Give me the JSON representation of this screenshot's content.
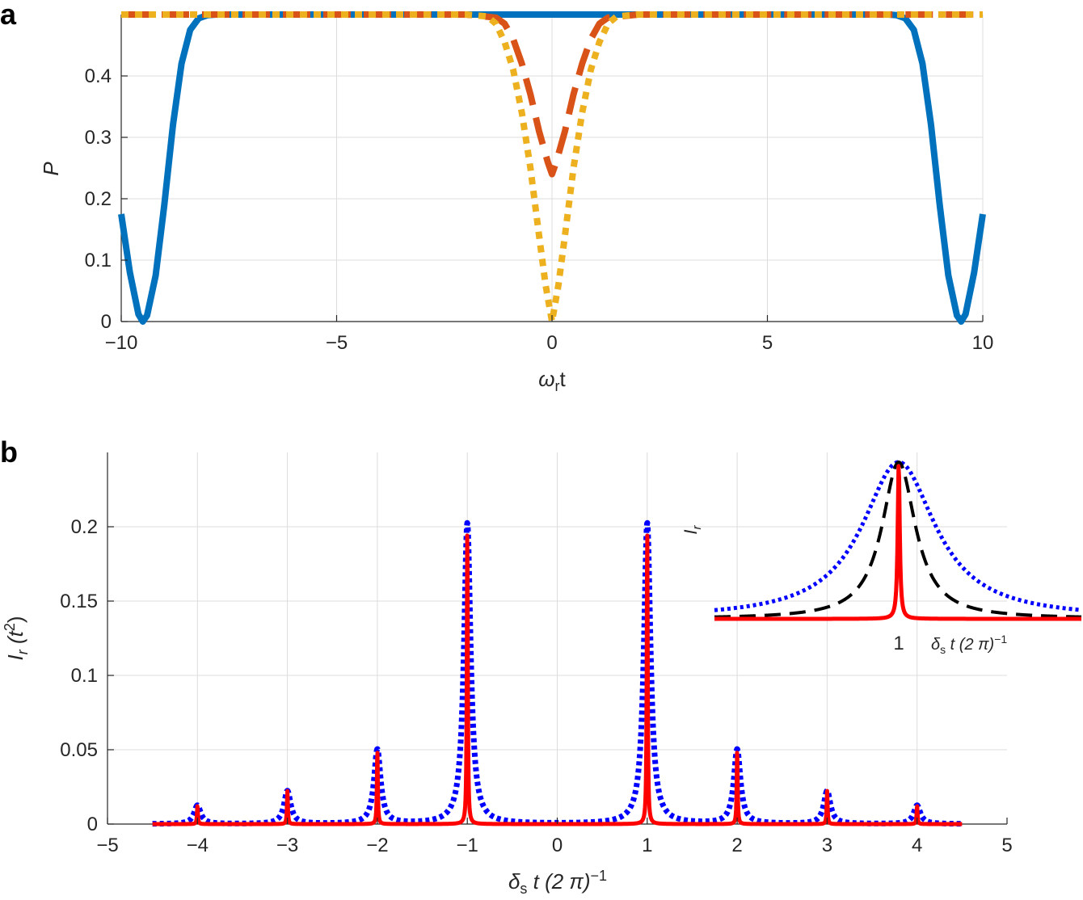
{
  "panels": {
    "a": {
      "letter": "a"
    },
    "b": {
      "letter": "b"
    }
  },
  "chart_data": [
    {
      "type": "line",
      "xlabel_main": "ω",
      "xlabel_sub": "r",
      "xlabel_tail": "t",
      "ylabel": "P",
      "xlim": [
        -10,
        10
      ],
      "ylim": [
        0,
        0.5
      ],
      "grid": true,
      "xticks": [
        -10,
        -5,
        0,
        5,
        10
      ],
      "xtick_labels": [
        "−10",
        "−5",
        "0",
        "5",
        "10"
      ],
      "yticks": [
        0,
        0.1,
        0.2,
        0.3,
        0.4
      ],
      "ytick_labels": [
        "0",
        "0.1",
        "0.2",
        "0.3",
        "0.4"
      ],
      "colors": {
        "blue": "#0072BD",
        "orange": "#D95319",
        "yellow": "#EDB120"
      },
      "series": [
        {
          "style": "solid",
          "color": "#0072BD",
          "x": [
            -10,
            -9.8,
            -9.6,
            -9.5,
            -9.4,
            -9.2,
            -9.0,
            -8.8,
            -8.6,
            -8.4,
            -8.2,
            -8.0,
            -7.8,
            -7.5,
            -5,
            0,
            5,
            7.5,
            7.8,
            8.0,
            8.2,
            8.4,
            8.6,
            8.8,
            9.0,
            9.2,
            9.4,
            9.5,
            9.6,
            9.8,
            10
          ],
          "y": [
            0.175,
            0.08,
            0.012,
            0.0,
            0.01,
            0.075,
            0.19,
            0.32,
            0.42,
            0.475,
            0.494,
            0.499,
            0.5,
            0.5,
            0.5,
            0.5,
            0.5,
            0.5,
            0.5,
            0.499,
            0.494,
            0.475,
            0.42,
            0.32,
            0.19,
            0.075,
            0.01,
            0.0,
            0.012,
            0.08,
            0.175
          ]
        },
        {
          "style": "dashed",
          "color": "#D95319",
          "x": [
            -10,
            -2,
            -1.3,
            -1.1,
            -0.9,
            -0.7,
            -0.5,
            -0.3,
            -0.1,
            0,
            0.1,
            0.3,
            0.5,
            0.7,
            0.9,
            1.1,
            1.3,
            2,
            10
          ],
          "y": [
            0.5,
            0.5,
            0.495,
            0.485,
            0.46,
            0.42,
            0.37,
            0.31,
            0.26,
            0.24,
            0.26,
            0.31,
            0.37,
            0.42,
            0.46,
            0.485,
            0.495,
            0.5,
            0.5
          ]
        },
        {
          "style": "dotted",
          "color": "#EDB120",
          "x": [
            -10,
            -2,
            -1.5,
            -1.3,
            -1.1,
            -0.9,
            -0.7,
            -0.5,
            -0.3,
            -0.15,
            0,
            0.15,
            0.3,
            0.5,
            0.7,
            0.9,
            1.1,
            1.3,
            1.5,
            2,
            10
          ],
          "y": [
            0.5,
            0.5,
            0.497,
            0.485,
            0.455,
            0.41,
            0.34,
            0.25,
            0.14,
            0.06,
            0.0,
            0.06,
            0.14,
            0.25,
            0.34,
            0.41,
            0.455,
            0.485,
            0.497,
            0.5,
            0.5
          ]
        }
      ]
    },
    {
      "type": "line",
      "xlabel_main": "δ",
      "xlabel_sub": "s",
      "xlabel_tail": " t (2 π)",
      "xlabel_sup": "−1",
      "ylabel_main": "I",
      "ylabel_sub": "r",
      "ylabel_tail": " (t",
      "ylabel_sup": "2",
      "ylabel_close": ")",
      "xlim": [
        -5,
        5
      ],
      "ylim": [
        0,
        0.25
      ],
      "grid": true,
      "xticks": [
        -5,
        -4,
        -3,
        -2,
        -1,
        0,
        1,
        2,
        3,
        4,
        5
      ],
      "xtick_labels": [
        "−5",
        "−4",
        "−3",
        "−2",
        "−1",
        "0",
        "1",
        "2",
        "3",
        "4",
        "5"
      ],
      "yticks": [
        0,
        0.05,
        0.1,
        0.15,
        0.2
      ],
      "ytick_labels": [
        "0",
        "0.05",
        "0.1",
        "0.15",
        "0.2"
      ],
      "colors": {
        "red": "#FF0000",
        "blue": "#0000FF"
      },
      "peaks": [
        {
          "x": -4,
          "height": 0.0125
        },
        {
          "x": -3,
          "height": 0.0222
        },
        {
          "x": -2,
          "height": 0.05
        },
        {
          "x": -1,
          "height": 0.2025
        },
        {
          "x": 1,
          "height": 0.2025
        },
        {
          "x": 2,
          "height": 0.05
        },
        {
          "x": 3,
          "height": 0.0222
        },
        {
          "x": 4,
          "height": 0.0125
        }
      ],
      "x_range": [
        -4.5,
        4.5
      ],
      "series": [
        {
          "style": "dotted",
          "color": "#0000FF",
          "width": 0.045
        },
        {
          "style": "solid",
          "color": "#FF0000",
          "width": 0.006
        }
      ],
      "inset": {
        "center": 1,
        "tick_label": "1",
        "ylabel_main": "I",
        "ylabel_sub": "r",
        "xlabel_main": "δ",
        "xlabel_sub": "s",
        "xlabel_tail": " t (2 π)",
        "xlabel_sup": "−1",
        "series": [
          {
            "style": "dotted",
            "color": "#0000FF",
            "width": 0.22
          },
          {
            "style": "dashed",
            "color": "#000000",
            "width": 0.1
          },
          {
            "style": "solid",
            "color": "#FF0000",
            "width": 0.006
          }
        ]
      }
    }
  ]
}
